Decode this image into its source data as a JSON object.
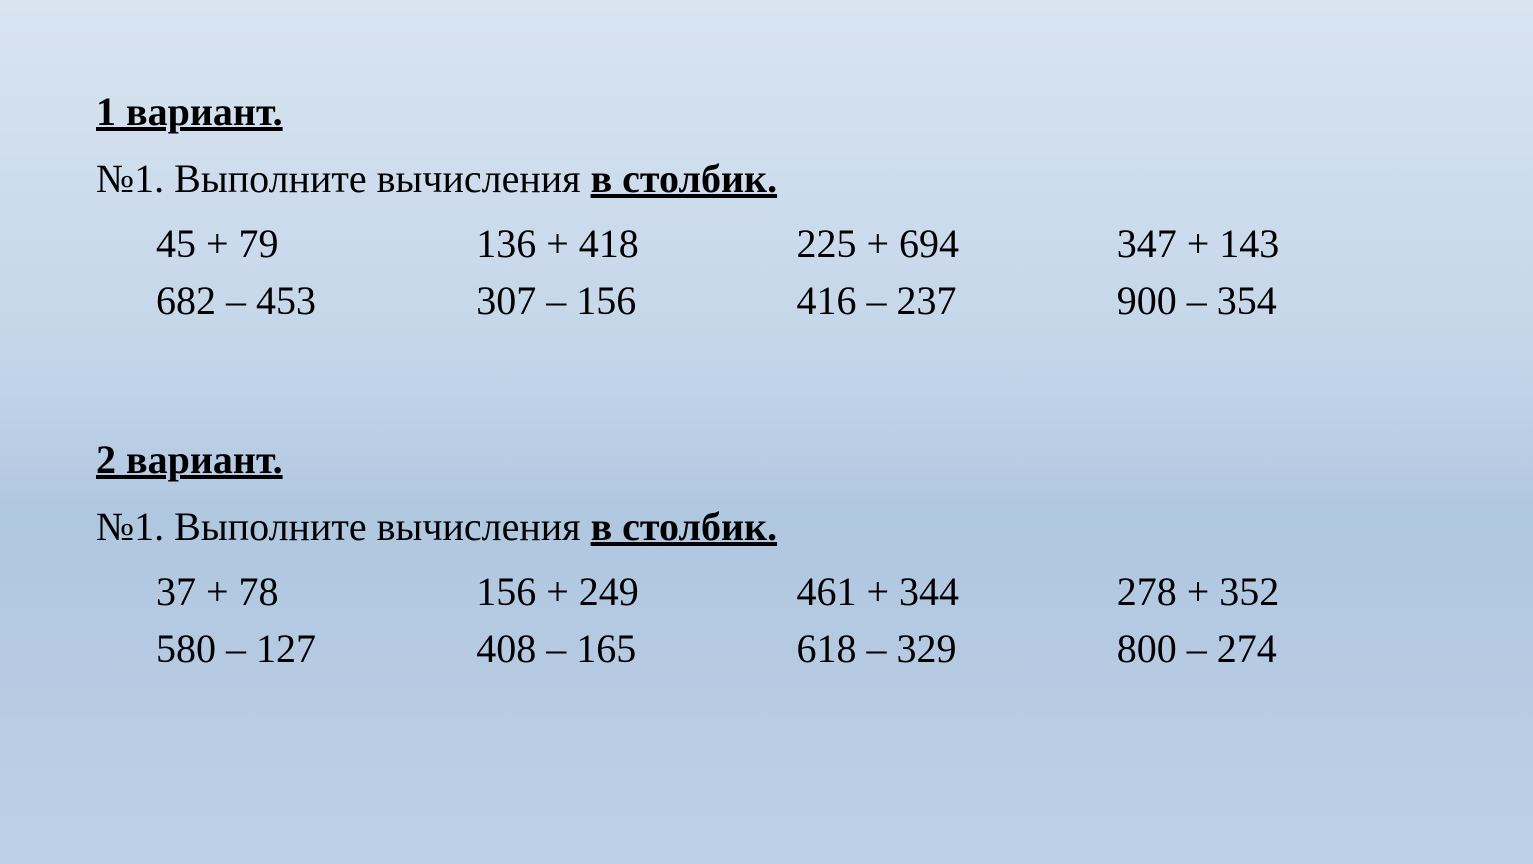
{
  "background": {
    "gradient_top": "#d8e4f0",
    "gradient_bottom": "#bdd0e6"
  },
  "text_color": "#000000",
  "font_family": "Times New Roman",
  "title_fontsize": 40,
  "body_fontsize": 40,
  "variants": [
    {
      "title": "1 вариант.",
      "task_prefix": "№1. Выполните вычисления ",
      "task_suffix": "в столбик.",
      "rows": [
        [
          "45 + 79",
          "136 + 418",
          "225 + 694",
          "347 + 143"
        ],
        [
          "682 – 453",
          "307 – 156",
          "416 – 237",
          "900 – 354"
        ]
      ]
    },
    {
      "title": "2 вариант.",
      "task_prefix": "№1. Выполните вычисления ",
      "task_suffix": "в столбик.",
      "rows": [
        [
          "37 + 78",
          "156 + 249",
          "461 + 344",
          "278 + 352"
        ],
        [
          "580 – 127",
          "408 – 165",
          "618 – 329",
          "800 – 274"
        ]
      ]
    }
  ]
}
